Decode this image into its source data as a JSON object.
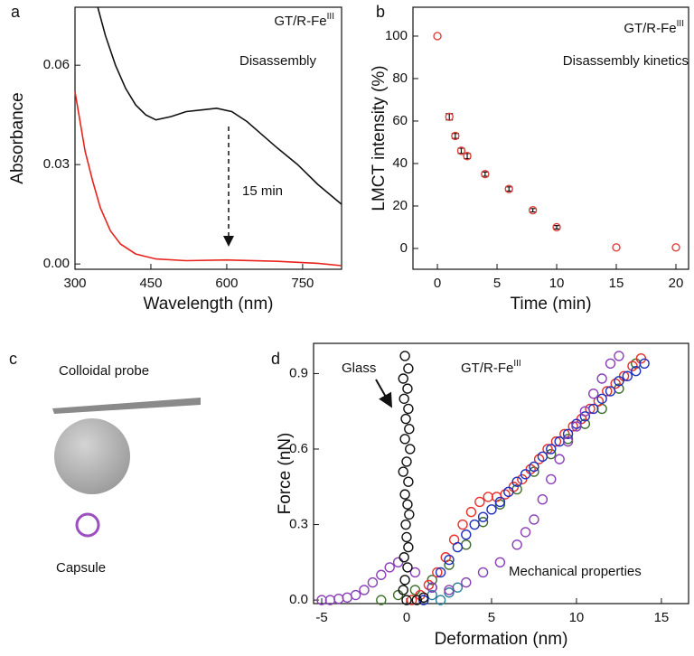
{
  "chart_data": [
    {
      "type": "line",
      "label": "a",
      "xlabel": "Wavelength (nm)",
      "ylabel": "Absorbance",
      "annotations": [
        {
          "text": "GT/R-Fe",
          "sup": "III"
        },
        {
          "text": "Disassembly"
        },
        {
          "text": "15 min"
        }
      ],
      "xlim": [
        300,
        827
      ],
      "ylim": [
        -0.0016,
        0.0775
      ],
      "xticks": [
        300,
        450,
        600,
        750
      ],
      "yticks": [
        {
          "value": 0,
          "label": "0.00"
        },
        {
          "value": 0.03,
          "label": "0.03"
        },
        {
          "value": 0.06,
          "label": "0.06"
        }
      ],
      "series": [
        {
          "color": "#111111",
          "x": [
            345,
            360,
            380,
            400,
            420,
            440,
            460,
            490,
            520,
            550,
            580,
            610,
            640,
            670,
            700,
            740,
            780,
            827
          ],
          "values": [
            0.0775,
            0.069,
            0.06,
            0.053,
            0.048,
            0.045,
            0.0435,
            0.0445,
            0.046,
            0.0465,
            0.047,
            0.046,
            0.043,
            0.039,
            0.035,
            0.03,
            0.024,
            0.018
          ]
        },
        {
          "color": "#e8231c",
          "x": [
            300,
            310,
            320,
            335,
            350,
            370,
            390,
            420,
            460,
            520,
            600,
            700,
            780,
            827
          ],
          "values": [
            0.052,
            0.043,
            0.034,
            0.025,
            0.017,
            0.01,
            0.006,
            0.003,
            0.0015,
            0.001,
            0.0012,
            0.0008,
            0.0002,
            -0.0005
          ]
        }
      ]
    },
    {
      "type": "scatter",
      "label": "b",
      "xlabel": "Time (min)",
      "ylabel": "LMCT intensity (%)",
      "annotations": [
        {
          "text": "GT/R-Fe",
          "sup": "III"
        },
        {
          "text": "Disassembly kinetics"
        }
      ],
      "xlim": [
        -2.05,
        21.06
      ],
      "ylim": [
        -9.8,
        113.6
      ],
      "xticks": [
        0,
        5,
        10,
        15,
        20
      ],
      "yticks": [
        0,
        20,
        40,
        60,
        80,
        100
      ],
      "series": [
        {
          "color": "#e0403a",
          "error_color": "#111111",
          "x": [
            0,
            1,
            1.5,
            2,
            2.5,
            4,
            6,
            8,
            10,
            15,
            20
          ],
          "values": [
            100,
            62,
            53,
            46,
            43.5,
            35,
            28,
            18,
            10,
            0.5,
            0.5
          ],
          "errors": [
            null,
            1.5,
            1.2,
            1.2,
            1.2,
            1,
            1,
            0.8,
            0.8,
            null,
            null
          ]
        }
      ]
    },
    {
      "type": "scatter",
      "label": "d",
      "xlabel": "Deformation (nm)",
      "ylabel": "Force (nN)",
      "annotations": [
        {
          "text": "Glass"
        },
        {
          "text": "GT/R-Fe",
          "sup": "III"
        },
        {
          "text": "Mechanical properties"
        }
      ],
      "xlim": [
        -5.48,
        16.6
      ],
      "ylim": [
        -0.014,
        1.02
      ],
      "xticks": [
        -5,
        0,
        5,
        10,
        15
      ],
      "yticks": [
        {
          "value": 0,
          "label": "0.0"
        },
        0.3,
        0.6,
        0.9
      ],
      "series": [
        {
          "color": "#2d7f9a",
          "x": [
            1.0,
            1.5,
            2.0,
            2.5,
            3.0
          ],
          "values": [
            0.0,
            0.02,
            0.0,
            0.03,
            0.05
          ]
        },
        {
          "color": "#3d6e2c",
          "x": [
            -1.5,
            -0.5,
            0.5,
            1.5,
            2.5,
            3.5,
            4.5,
            5.5,
            6.5,
            7.5,
            8.5,
            9.5,
            10.5,
            11.5,
            12.5,
            13.5
          ],
          "values": [
            0.0,
            0.02,
            0.04,
            0.08,
            0.14,
            0.22,
            0.31,
            0.38,
            0.44,
            0.51,
            0.58,
            0.64,
            0.7,
            0.76,
            0.84,
            0.94
          ]
        },
        {
          "color": "#e8312b",
          "x": [
            0.3,
            0.8,
            1.3,
            1.8,
            2.3,
            2.8,
            3.3,
            3.8,
            4.3,
            4.8,
            5.3,
            5.8,
            6.3,
            6.8,
            7.3,
            7.8,
            8.3,
            8.8,
            9.3,
            9.8,
            10.3,
            10.8,
            11.3,
            11.8,
            12.3,
            12.8,
            13.3,
            13.8
          ],
          "values": [
            0.0,
            0.02,
            0.06,
            0.11,
            0.17,
            0.24,
            0.3,
            0.35,
            0.39,
            0.41,
            0.41,
            0.42,
            0.45,
            0.48,
            0.52,
            0.56,
            0.6,
            0.63,
            0.66,
            0.69,
            0.72,
            0.76,
            0.79,
            0.83,
            0.86,
            0.89,
            0.93,
            0.96
          ]
        },
        {
          "color": "#1f2fbf",
          "x": [
            1.0,
            1.5,
            2.0,
            2.5,
            3.0,
            3.5,
            4.0,
            4.5,
            5.0,
            5.5,
            6.0,
            6.5,
            7.0,
            7.5,
            8.0,
            8.5,
            9.0,
            9.5,
            10.0,
            10.5,
            11.0,
            11.5,
            12.0,
            12.5,
            13.0,
            13.5,
            14.0
          ],
          "values": [
            0.0,
            0.05,
            0.11,
            0.16,
            0.21,
            0.26,
            0.3,
            0.33,
            0.36,
            0.39,
            0.43,
            0.47,
            0.5,
            0.53,
            0.57,
            0.6,
            0.63,
            0.66,
            0.7,
            0.73,
            0.76,
            0.8,
            0.83,
            0.87,
            0.89,
            0.91,
            0.94
          ]
        },
        {
          "color": "#8a3fb8",
          "x": [
            -5,
            -4.5,
            -4,
            -3.5,
            -3,
            -2.5,
            -2,
            -1.5,
            -1,
            -0.5,
            0.5,
            1.5,
            2.5,
            3.5,
            4.5,
            5.5,
            6.5,
            7,
            7.5,
            8,
            8.5,
            9,
            9.5,
            10,
            10.5,
            11,
            11.5,
            12,
            12.5
          ],
          "values": [
            0,
            0,
            0.005,
            0.01,
            0.02,
            0.04,
            0.07,
            0.1,
            0.13,
            0.15,
            0.11,
            0.05,
            0.04,
            0.07,
            0.11,
            0.15,
            0.22,
            0.27,
            0.32,
            0.4,
            0.48,
            0.56,
            0.63,
            0.69,
            0.75,
            0.82,
            0.88,
            0.94,
            0.97
          ]
        },
        {
          "color": "#111111",
          "x": [
            -0.1,
            0.1,
            -0.2,
            0.05,
            -0.15,
            0.1,
            -0.05,
            0.15,
            -0.1,
            0.2,
            0.0,
            -0.2,
            0.1,
            -0.1,
            0.05,
            0.15,
            -0.05,
            0.0,
            0.1,
            -0.15,
            0.05,
            -0.1,
            -0.2,
            0.0,
            0.6,
            1.0
          ],
          "values": [
            0.97,
            0.92,
            0.88,
            0.84,
            0.8,
            0.76,
            0.72,
            0.68,
            0.64,
            0.6,
            0.55,
            0.51,
            0.47,
            0.42,
            0.38,
            0.34,
            0.3,
            0.25,
            0.21,
            0.17,
            0.13,
            0.08,
            0.04,
            0.0,
            0.0,
            0.01
          ]
        }
      ]
    }
  ],
  "diagram": {
    "label": "c",
    "probe": "Colloidal probe",
    "capsule": "Capsule"
  }
}
